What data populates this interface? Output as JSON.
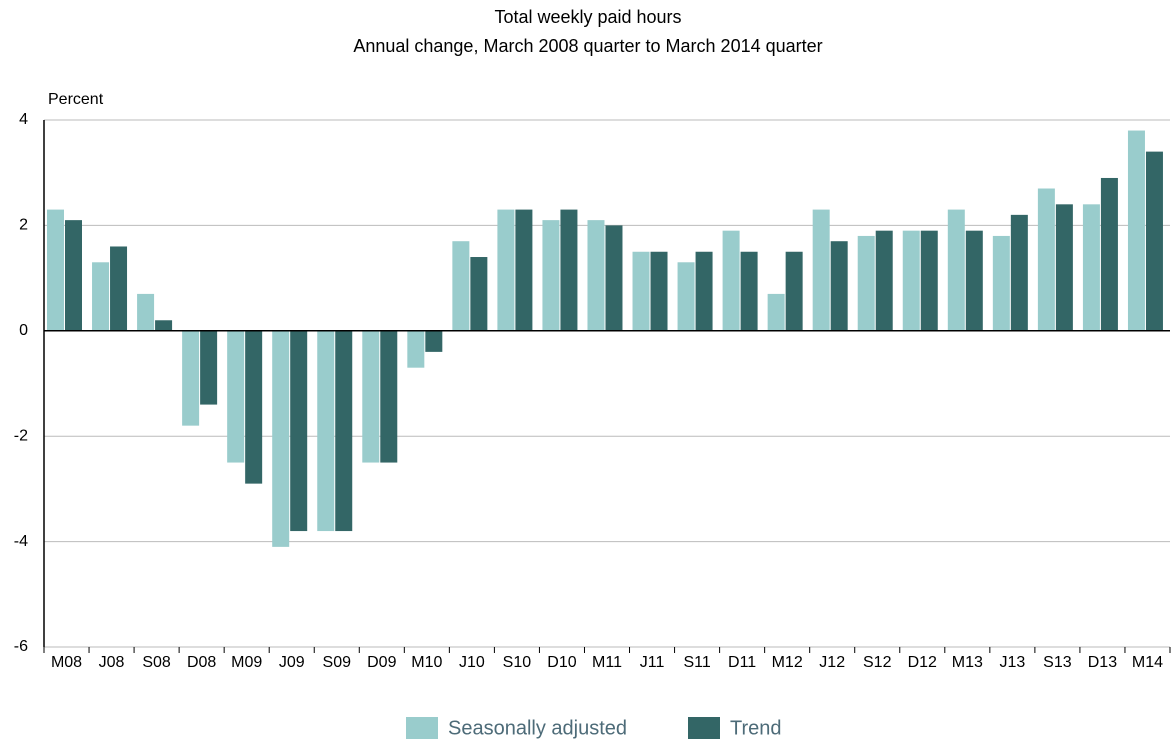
{
  "chart_data": {
    "type": "bar",
    "title": "Total weekly paid hours",
    "subtitle": "Annual change, March 2008 quarter to March 2014 quarter",
    "y_label": "Percent",
    "categories": [
      "M08",
      "J08",
      "S08",
      "D08",
      "M09",
      "J09",
      "S09",
      "D09",
      "M10",
      "J10",
      "S10",
      "D10",
      "M11",
      "J11",
      "S11",
      "D11",
      "M12",
      "J12",
      "S12",
      "D12",
      "M13",
      "J13",
      "S13",
      "D13",
      "M14"
    ],
    "series": [
      {
        "name": "Seasonally adjusted",
        "color": "#99cccc",
        "values": [
          2.3,
          1.3,
          0.7,
          -1.8,
          -2.5,
          -4.1,
          -3.8,
          -2.5,
          -0.7,
          1.7,
          2.3,
          2.1,
          2.1,
          1.5,
          1.3,
          1.9,
          0.7,
          2.3,
          1.8,
          1.9,
          2.3,
          1.8,
          2.7,
          2.4,
          3.8
        ]
      },
      {
        "name": "Trend",
        "color": "#336666",
        "values": [
          2.1,
          1.6,
          0.2,
          -1.4,
          -2.9,
          -3.8,
          -3.8,
          -2.5,
          -0.4,
          1.4,
          2.3,
          2.3,
          2.0,
          1.5,
          1.5,
          1.5,
          1.5,
          1.7,
          1.9,
          1.9,
          1.9,
          2.2,
          2.4,
          2.9,
          3.4
        ]
      }
    ],
    "ylim": [
      -6,
      4
    ],
    "yticks": [
      -6,
      -4,
      -2,
      0,
      2,
      4
    ],
    "grid": true,
    "legend": "bottom"
  }
}
